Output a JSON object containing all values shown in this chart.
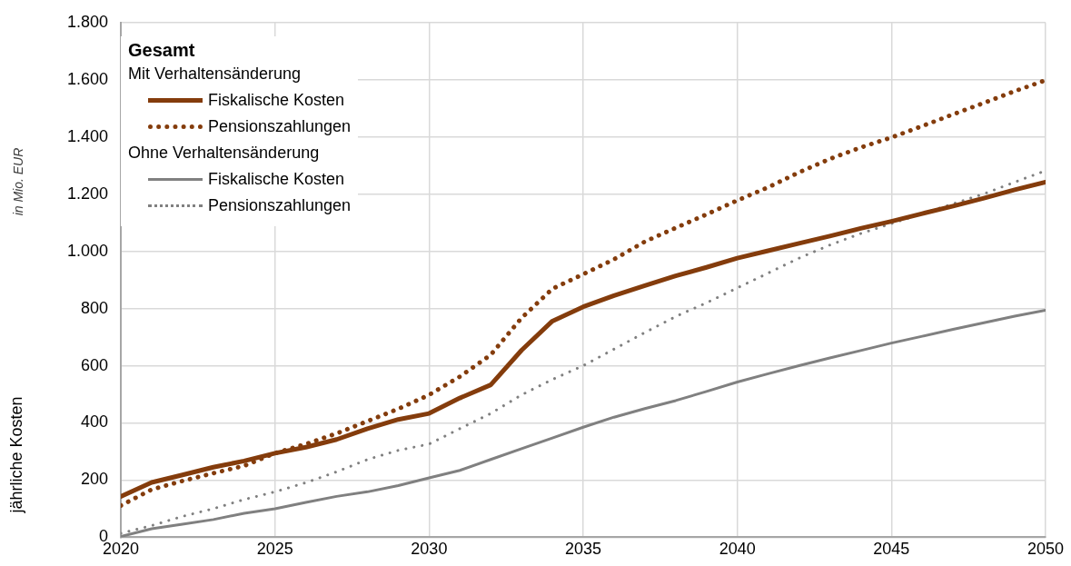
{
  "chart_data": {
    "type": "line",
    "ylabel": "jährliche Kosten",
    "legend_title": "Gesamt",
    "annotations": [
      "in Mio. EUR",
      "Mit Verhaltensänderung",
      "Ohne Verhaltensänderung"
    ],
    "x": [
      2020,
      2021,
      2022,
      2023,
      2024,
      2025,
      2026,
      2027,
      2028,
      2029,
      2030,
      2031,
      2032,
      2033,
      2034,
      2035,
      2036,
      2037,
      2038,
      2039,
      2040,
      2041,
      2042,
      2043,
      2044,
      2045,
      2046,
      2047,
      2048,
      2049,
      2050
    ],
    "series": [
      {
        "name": "Fiskalische Kosten",
        "color": "#843c0c",
        "line_style": "solid",
        "values": [
          143,
          192,
          218,
          245,
          267,
          294,
          315,
          342,
          380,
          412,
          433,
          487,
          533,
          654,
          756,
          806,
          845,
          880,
          914,
          944,
          976,
          1002,
          1028,
          1053,
          1080,
          1105,
          1132,
          1158,
          1186,
          1215,
          1242
        ]
      },
      {
        "name": "Pensionszahlungen",
        "color": "#843c0c",
        "line_style": "dotted",
        "values": [
          111,
          167,
          197,
          224,
          250,
          294,
          326,
          363,
          406,
          449,
          498,
          562,
          638,
          767,
          869,
          920,
          972,
          1034,
          1082,
          1129,
          1178,
          1224,
          1276,
          1323,
          1363,
          1398,
          1438,
          1479,
          1519,
          1560,
          1598
        ]
      },
      {
        "name": "Fiskalische Kosten",
        "color": "#808080",
        "line_style": "solid",
        "values": [
          3,
          30,
          46,
          62,
          84,
          100,
          122,
          143,
          159,
          181,
          208,
          234,
          272,
          310,
          347,
          385,
          420,
          450,
          478,
          510,
          543,
          572,
          600,
          627,
          653,
          679,
          703,
          727,
          750,
          773,
          794
        ]
      },
      {
        "name": "Pensionszahlungen",
        "color": "#808080",
        "line_style": "dotted",
        "values": [
          14,
          41,
          73,
          100,
          132,
          159,
          191,
          229,
          272,
          304,
          326,
          380,
          433,
          498,
          552,
          600,
          658,
          716,
          772,
          820,
          872,
          924,
          976,
          1022,
          1062,
          1097,
          1132,
          1166,
          1201,
          1242,
          1282
        ]
      }
    ],
    "xlim": [
      2020,
      2050
    ],
    "xticks": [
      2020,
      2025,
      2030,
      2035,
      2040,
      2045,
      2050
    ],
    "ylim": [
      0,
      1800
    ],
    "yticks": [
      0,
      {
        "value": 200,
        "label": "200"
      },
      {
        "value": 400,
        "label": "400"
      },
      {
        "value": 600,
        "label": "600"
      },
      {
        "value": 800,
        "label": "800"
      },
      {
        "value": 1000,
        "label": "1.000"
      },
      {
        "value": 1200,
        "label": "1.200"
      },
      {
        "value": 1400,
        "label": "1.400"
      },
      {
        "value": 1600,
        "label": "1.600"
      },
      {
        "value": 1800,
        "label": "1.800"
      }
    ],
    "grid": true,
    "legend": "top left",
    "marker": "none"
  }
}
